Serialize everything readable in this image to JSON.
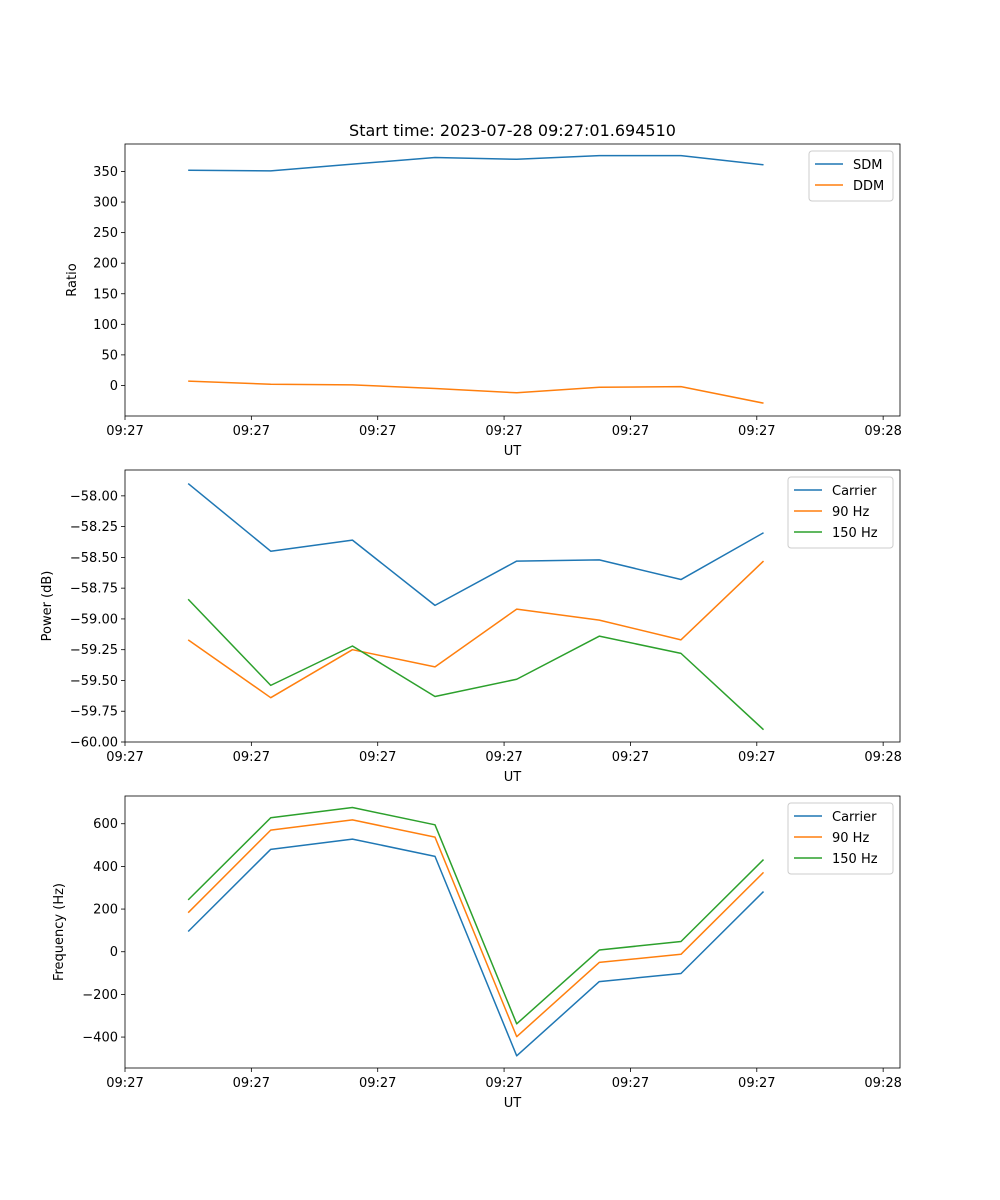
{
  "chart_data": [
    {
      "type": "line",
      "title": "Start time: 2023-07-28 09:27:01.694510",
      "xlabel": "UT",
      "ylabel": "Ratio",
      "xlim": [
        0,
        9.2
      ],
      "x_ticks": [
        {
          "value": 0,
          "label": "09:27"
        },
        {
          "value": 1.5,
          "label": "09:27"
        },
        {
          "value": 3,
          "label": "09:27"
        },
        {
          "value": 4.5,
          "label": "09:27"
        },
        {
          "value": 6,
          "label": "09:27"
        },
        {
          "value": 7.5,
          "label": "09:27"
        },
        {
          "value": 9,
          "label": "09:28"
        }
      ],
      "ylim": [
        -50,
        395
      ],
      "y_ticks": [
        {
          "value": 0,
          "label": "0"
        },
        {
          "value": 50,
          "label": "50"
        },
        {
          "value": 100,
          "label": "100"
        },
        {
          "value": 150,
          "label": "150"
        },
        {
          "value": 200,
          "label": "200"
        },
        {
          "value": 250,
          "label": "250"
        },
        {
          "value": 300,
          "label": "300"
        },
        {
          "value": 350,
          "label": "350"
        }
      ],
      "x": [
        0.75,
        1.73,
        2.7,
        3.68,
        4.65,
        5.63,
        6.6,
        7.58
      ],
      "series": [
        {
          "name": "SDM",
          "color": "#1f77b4",
          "values": [
            352,
            351,
            362,
            373,
            370,
            376,
            376,
            361
          ]
        },
        {
          "name": "DDM",
          "color": "#ff7f0e",
          "values": [
            7,
            2,
            1,
            -5,
            -12,
            -3,
            -2,
            -29
          ]
        }
      ],
      "legend_position": "top-right"
    },
    {
      "type": "line",
      "title": "",
      "xlabel": "UT",
      "ylabel": "Power (dB)",
      "xlim": [
        0,
        9.2
      ],
      "x_ticks": [
        {
          "value": 0,
          "label": "09:27"
        },
        {
          "value": 1.5,
          "label": "09:27"
        },
        {
          "value": 3,
          "label": "09:27"
        },
        {
          "value": 4.5,
          "label": "09:27"
        },
        {
          "value": 6,
          "label": "09:27"
        },
        {
          "value": 7.5,
          "label": "09:27"
        },
        {
          "value": 9,
          "label": "09:28"
        }
      ],
      "ylim": [
        -60.0,
        -57.79
      ],
      "y_ticks": [
        {
          "value": -60.0,
          "label": "−60.00"
        },
        {
          "value": -59.75,
          "label": "−59.75"
        },
        {
          "value": -59.5,
          "label": "−59.50"
        },
        {
          "value": -59.25,
          "label": "−59.25"
        },
        {
          "value": -59.0,
          "label": "−59.00"
        },
        {
          "value": -58.75,
          "label": "−58.75"
        },
        {
          "value": -58.5,
          "label": "−58.50"
        },
        {
          "value": -58.25,
          "label": "−58.25"
        },
        {
          "value": -58.0,
          "label": "−58.00"
        }
      ],
      "x": [
        0.75,
        1.73,
        2.7,
        3.68,
        4.65,
        5.63,
        6.6,
        7.58
      ],
      "series": [
        {
          "name": "Carrier",
          "color": "#1f77b4",
          "values": [
            -57.9,
            -58.45,
            -58.36,
            -58.89,
            -58.53,
            -58.52,
            -58.68,
            -58.3
          ]
        },
        {
          "name": "90 Hz",
          "color": "#ff7f0e",
          "values": [
            -59.17,
            -59.64,
            -59.25,
            -59.39,
            -58.92,
            -59.01,
            -59.17,
            -58.53
          ]
        },
        {
          "name": "150 Hz",
          "color": "#2ca02c",
          "values": [
            -58.84,
            -59.54,
            -59.22,
            -59.63,
            -59.49,
            -59.14,
            -59.28,
            -59.9
          ]
        }
      ],
      "legend_position": "top-right"
    },
    {
      "type": "line",
      "title": "",
      "xlabel": "UT",
      "ylabel": "Frequency (Hz)",
      "xlim": [
        0,
        9.2
      ],
      "x_ticks": [
        {
          "value": 0,
          "label": "09:27"
        },
        {
          "value": 1.5,
          "label": "09:27"
        },
        {
          "value": 3,
          "label": "09:27"
        },
        {
          "value": 4.5,
          "label": "09:27"
        },
        {
          "value": 6,
          "label": "09:27"
        },
        {
          "value": 7.5,
          "label": "09:27"
        },
        {
          "value": 9,
          "label": "09:28"
        }
      ],
      "ylim": [
        -545,
        730
      ],
      "y_ticks": [
        {
          "value": -400,
          "label": "−400"
        },
        {
          "value": -200,
          "label": "−200"
        },
        {
          "value": 0,
          "label": "0"
        },
        {
          "value": 200,
          "label": "200"
        },
        {
          "value": 400,
          "label": "400"
        },
        {
          "value": 600,
          "label": "600"
        }
      ],
      "x": [
        0.75,
        1.73,
        2.7,
        3.68,
        4.65,
        5.63,
        6.6,
        7.58
      ],
      "series": [
        {
          "name": "Carrier",
          "color": "#1f77b4",
          "values": [
            95,
            480,
            528,
            447,
            -488,
            -140,
            -102,
            282
          ]
        },
        {
          "name": "90 Hz",
          "color": "#ff7f0e",
          "values": [
            183,
            570,
            618,
            537,
            -398,
            -50,
            -12,
            372
          ]
        },
        {
          "name": "150 Hz",
          "color": "#2ca02c",
          "values": [
            243,
            628,
            676,
            595,
            -338,
            8,
            48,
            432
          ]
        }
      ],
      "legend_position": "top-right"
    }
  ]
}
